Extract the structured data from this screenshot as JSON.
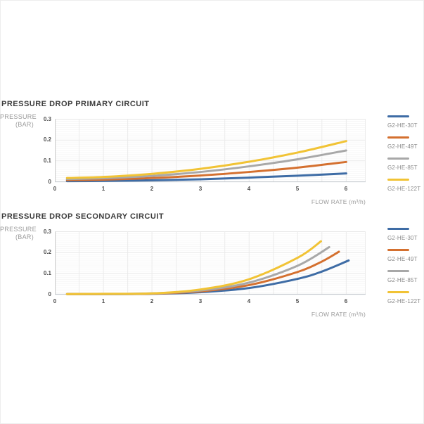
{
  "chart_data": [
    {
      "type": "line",
      "title": "PRESSURE DROP PRIMARY CIRCUIT",
      "xlabel": "FLOW RATE (m³/h)",
      "ylabel": "PRESSURE (BAR)",
      "ylabel_lines": [
        "PRESSURE",
        "(BAR)"
      ],
      "xlim": [
        0,
        6.4
      ],
      "ylim": [
        0,
        0.3
      ],
      "x_ticks": [
        0,
        1,
        2,
        3,
        4,
        5,
        6
      ],
      "y_ticks": [
        0.3,
        0.2,
        0.1,
        0
      ],
      "grid": true,
      "legend_position": "right",
      "series": [
        {
          "name": "G2-HE-30T",
          "color": "#3e6ca5",
          "x": [
            0.25,
            1,
            2,
            3,
            4,
            5,
            6
          ],
          "y": [
            0.003,
            0.004,
            0.007,
            0.012,
            0.02,
            0.029,
            0.04
          ]
        },
        {
          "name": "G2-HE-49T",
          "color": "#d4702f",
          "x": [
            0.25,
            1,
            2,
            3,
            4,
            5,
            6
          ],
          "y": [
            0.008,
            0.01,
            0.018,
            0.03,
            0.047,
            0.068,
            0.095
          ]
        },
        {
          "name": "G2-HE-85T",
          "color": "#a8a8a8",
          "x": [
            0.25,
            1,
            2,
            3,
            4,
            5,
            6
          ],
          "y": [
            0.013,
            0.017,
            0.028,
            0.047,
            0.074,
            0.108,
            0.15
          ]
        },
        {
          "name": "G2-HE-122T",
          "color": "#f1c335",
          "x": [
            0.25,
            1,
            2,
            3,
            4,
            5,
            6
          ],
          "y": [
            0.018,
            0.023,
            0.038,
            0.062,
            0.096,
            0.14,
            0.195
          ]
        }
      ]
    },
    {
      "type": "line",
      "title": "PRESSURE DROP SECONDARY CIRCUIT",
      "xlabel": "FLOW RATE (m³/h)",
      "ylabel": "PRESSURE (BAR)",
      "ylabel_lines": [
        "PRESSURE",
        "(BAR)"
      ],
      "xlim": [
        0,
        6.4
      ],
      "ylim": [
        0,
        0.3
      ],
      "x_ticks": [
        0,
        1,
        2,
        3,
        4,
        5,
        6
      ],
      "y_ticks": [
        0.3,
        0.2,
        0.1,
        0
      ],
      "grid": true,
      "legend_position": "right",
      "series": [
        {
          "name": "G2-HE-30T",
          "color": "#3e6ca5",
          "x": [
            0.25,
            1,
            2,
            3,
            4,
            5,
            5.5,
            6.05
          ],
          "y": [
            0.001,
            0.001,
            0.002,
            0.01,
            0.03,
            0.074,
            0.109,
            0.162
          ]
        },
        {
          "name": "G2-HE-49T",
          "color": "#d4702f",
          "x": [
            0.25,
            1,
            2,
            3,
            4,
            5,
            5.5,
            5.85
          ],
          "y": [
            0.001,
            0.001,
            0.003,
            0.014,
            0.044,
            0.107,
            0.157,
            0.204
          ]
        },
        {
          "name": "G2-HE-85T",
          "color": "#a8a8a8",
          "x": [
            0.25,
            1,
            2,
            3,
            4,
            5,
            5.65
          ],
          "y": [
            0.001,
            0.001,
            0.004,
            0.018,
            0.056,
            0.137,
            0.226
          ]
        },
        {
          "name": "G2-HE-122T",
          "color": "#f1c335",
          "x": [
            0.25,
            1,
            2,
            3,
            4,
            5,
            5.48
          ],
          "y": [
            0.001,
            0.002,
            0.004,
            0.023,
            0.072,
            0.175,
            0.254
          ]
        }
      ]
    }
  ]
}
